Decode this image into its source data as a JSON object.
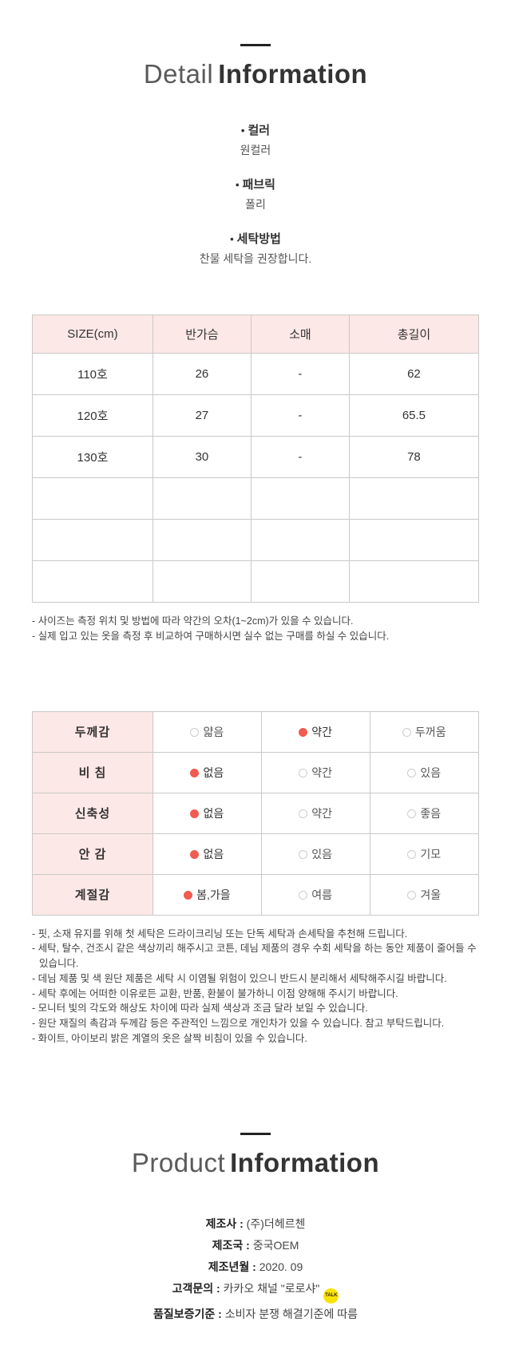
{
  "detail_header": {
    "light": "Detail",
    "bold": "Information"
  },
  "product_header": {
    "light": "Product",
    "bold": "Information"
  },
  "glyphs": {
    "bullet": "•",
    "separator": " : "
  },
  "info_items": [
    {
      "label": "컬러",
      "value": "원컬러"
    },
    {
      "label": "패브릭",
      "value": "폴리"
    },
    {
      "label": "세탁방법",
      "value": "찬물 세탁을 권장합니다."
    }
  ],
  "size_table": {
    "headers": [
      "SIZE(cm)",
      "반가슴",
      "소매",
      "총길이"
    ],
    "rows": [
      [
        "110호",
        "26",
        "-",
        "62"
      ],
      [
        "120호",
        "27",
        "-",
        "65.5"
      ],
      [
        "130호",
        "30",
        "-",
        "78"
      ],
      [
        "",
        "",
        "",
        ""
      ],
      [
        "",
        "",
        "",
        ""
      ],
      [
        "",
        "",
        "",
        ""
      ]
    ],
    "notes": [
      "- 사이즈는 측정 위치 및 방법에 따라 약간의 오차(1~2cm)가 있을 수 있습니다.",
      "- 실제 입고 있는 옷을 측정 후 비교하여 구매하시면 실수 없는 구매를 하실 수 있습니다."
    ]
  },
  "attribute_table": {
    "rows": [
      {
        "label": "두께감",
        "options": [
          {
            "text": "얇음",
            "selected": false
          },
          {
            "text": "약간",
            "selected": true
          },
          {
            "text": "두꺼움",
            "selected": false
          }
        ]
      },
      {
        "label": "비  침",
        "options": [
          {
            "text": "없음",
            "selected": true
          },
          {
            "text": "약간",
            "selected": false
          },
          {
            "text": "있음",
            "selected": false
          }
        ]
      },
      {
        "label": "신축성",
        "options": [
          {
            "text": "없음",
            "selected": true
          },
          {
            "text": "약간",
            "selected": false
          },
          {
            "text": "좋음",
            "selected": false
          }
        ]
      },
      {
        "label": "안  감",
        "options": [
          {
            "text": "없음",
            "selected": true
          },
          {
            "text": "있음",
            "selected": false
          },
          {
            "text": "기모",
            "selected": false
          }
        ]
      },
      {
        "label": "계절감",
        "options": [
          {
            "text": "봄,가을",
            "selected": true
          },
          {
            "text": "여름",
            "selected": false
          },
          {
            "text": "겨울",
            "selected": false
          }
        ]
      }
    ],
    "notes": [
      "- 핏, 소재 유지를 위해 첫 세탁은 드라이크리닝 또는 단독 세탁과 손세탁을 추천해 드립니다.",
      "- 세탁, 탈수, 건조시 같은 색상끼리 해주시고 코튼, 데님 제품의 경우 수회 세탁을 하는 동안 제품이 줄어들 수 있습니다.",
      "- 데님 제품 및 색 원단 제품은 세탁 시 이염될 위험이 있으니 반드시 분리해서 세탁해주시길 바랍니다.",
      "- 세탁 후에는 어떠한 이유로든 교환, 반품, 환불이 불가하니 이점 양해해 주시기 바랍니다.",
      "- 모니터 빛의 각도와 해상도 차이에 따라 실제 색상과 조금 달라 보일 수 있습니다.",
      "- 원단 재질의 촉감과 두께감 등은 주관적인 느낌으로 개인차가 있을 수 있습니다. 참고 부탁드립니다.",
      "- 화이트, 아이보리 밝은 계열의 옷은 살짝 비침이 있을 수 있습니다."
    ]
  },
  "product_info": {
    "items": [
      {
        "label": "제조사",
        "value": "(주)더헤르첸"
      },
      {
        "label": "제조국",
        "value": "중국OEM"
      },
      {
        "label": "제조년월",
        "value": "2020. 09"
      },
      {
        "label": "고객문의",
        "value": "카카오 채널 \"로로샤\""
      },
      {
        "label": "품질보증기준",
        "value": "소비자 분쟁 해결기준에 따름"
      }
    ],
    "kakao_icon_label": "TALK"
  },
  "colors": {
    "table_header_bg": "#fce8e6",
    "radio_selected": "#f15b52",
    "table_border": "#c9c9c9",
    "kakao_yellow": "#fae300"
  }
}
